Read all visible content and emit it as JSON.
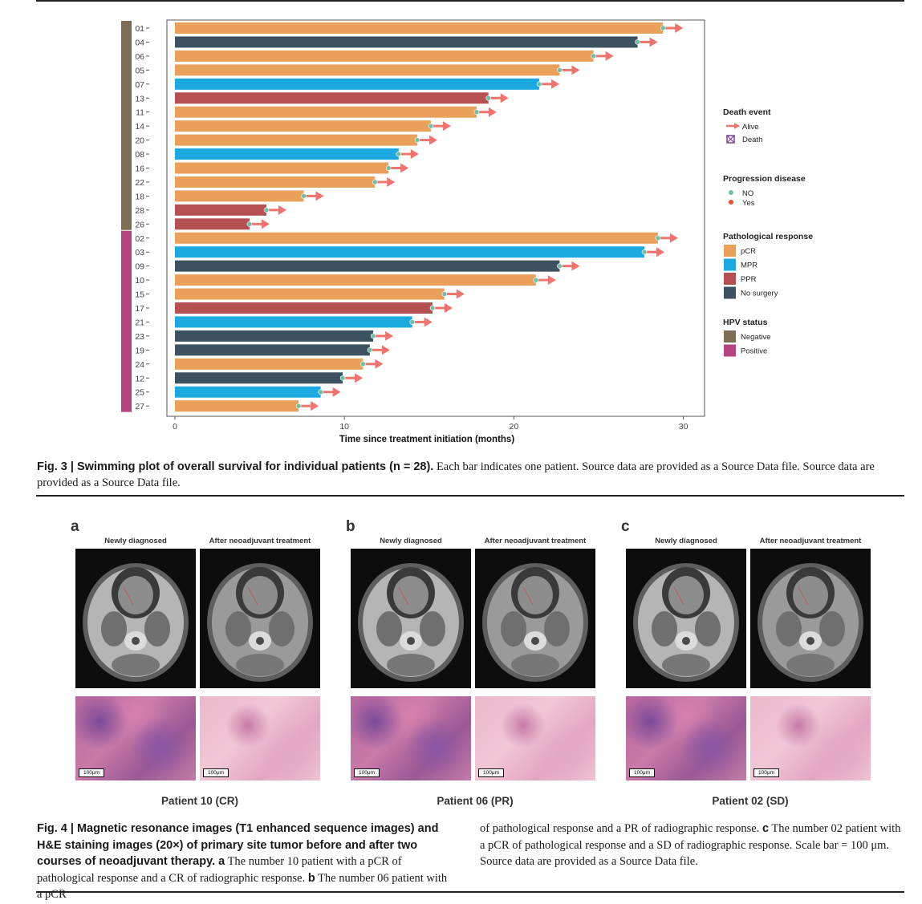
{
  "chart_data": {
    "type": "bar",
    "orientation": "horizontal",
    "xlabel": "Time since treatment initiation (months)",
    "ylabel": "",
    "xlim": [
      0,
      31
    ],
    "xticks": [
      0,
      10,
      20,
      30
    ],
    "grid": false,
    "legend_position": "right",
    "categories": [
      "01",
      "04",
      "06",
      "05",
      "07",
      "13",
      "11",
      "14",
      "20",
      "08",
      "16",
      "22",
      "18",
      "28",
      "26",
      "02",
      "03",
      "09",
      "10",
      "15",
      "17",
      "21",
      "23",
      "19",
      "24",
      "12",
      "25",
      "27"
    ],
    "values": [
      28.8,
      27.3,
      24.7,
      22.7,
      21.5,
      18.5,
      17.8,
      15.1,
      14.3,
      13.2,
      12.6,
      11.8,
      7.6,
      5.4,
      4.4,
      28.5,
      27.7,
      22.7,
      21.3,
      15.9,
      15.2,
      14.0,
      11.7,
      11.5,
      11.1,
      9.9,
      8.6,
      7.3
    ],
    "response": [
      "pCR",
      "No surgery",
      "pCR",
      "pCR",
      "MPR",
      "PPR",
      "pCR",
      "pCR",
      "pCR",
      "MPR",
      "pCR",
      "pCR",
      "pCR",
      "PPR",
      "PPR",
      "pCR",
      "MPR",
      "No surgery",
      "pCR",
      "pCR",
      "PPR",
      "MPR",
      "No surgery",
      "No surgery",
      "pCR",
      "No surgery",
      "MPR",
      "pCR"
    ],
    "hpv": [
      "Negative",
      "Negative",
      "Negative",
      "Negative",
      "Negative",
      "Negative",
      "Negative",
      "Negative",
      "Negative",
      "Negative",
      "Negative",
      "Negative",
      "Negative",
      "Negative",
      "Negative",
      "Positive",
      "Positive",
      "Positive",
      "Positive",
      "Positive",
      "Positive",
      "Positive",
      "Positive",
      "Positive",
      "Positive",
      "Positive",
      "Positive",
      "Positive"
    ],
    "death_event": "Alive",
    "progression": "NO",
    "legend": {
      "death_title": "Death event",
      "death_items": [
        "Alive",
        "Death"
      ],
      "progression_title": "Progression disease",
      "progression_items": [
        "NO",
        "Yes"
      ],
      "response_title": "Pathological response",
      "response_items": [
        "pCR",
        "MPR",
        "PPR",
        "No surgery"
      ],
      "hpv_title": "HPV status",
      "hpv_items": [
        "Negative",
        "Positive"
      ]
    },
    "colors": {
      "pCR": "#e8a05a",
      "MPR": "#1ba9e0",
      "PPR": "#b55052",
      "No surgery": "#3c5261",
      "Negative": "#7f6c55",
      "Positive": "#b5447f",
      "arrow": "#f0736e",
      "no_progression": "#6dbfa6",
      "progression": "#e6552d",
      "death": "#7d3c98"
    }
  },
  "fig3": {
    "caption_bold": "Fig. 3 | Swimming plot of overall survival for individual patients (n = 28).",
    "caption_text": " Each bar indicates one patient. Source data are provided as a Source Data file. Source data are provided as a Source Data file."
  },
  "fig4": {
    "panels": [
      {
        "letter": "a",
        "label_before": "Newly diagnosed",
        "label_after": "After neoadjuvant treatment",
        "patient": "Patient 10 (CR)"
      },
      {
        "letter": "b",
        "label_before": "Newly diagnosed",
        "label_after": "After neoadjuvant treatment",
        "patient": "Patient 06 (PR)"
      },
      {
        "letter": "c",
        "label_before": "Newly diagnosed",
        "label_after": "After neoadjuvant treatment",
        "patient": "Patient 02 (SD)"
      }
    ],
    "scale_label": "100μm",
    "caption_bold": "Fig. 4 | Magnetic resonance images (T1 enhanced sequence images) and H&E staining images (20×) of primary site tumor before and after two courses of neoadjuvant therapy.",
    "caption_a_letter": "a",
    "caption_a": " The number 10 patient with a pCR of pathological response and a CR of radiographic response. ",
    "caption_b_letter": "b",
    "caption_b": " The number 06 patient with a pCR of pathological response and a PR of radiographic response. ",
    "caption_c_letter": "c",
    "caption_c": " The number 02 patient with a pCR of pathological response and a SD of radiographic response. Scale bar = 100 μm. Source data are provided as a Source Data file."
  }
}
